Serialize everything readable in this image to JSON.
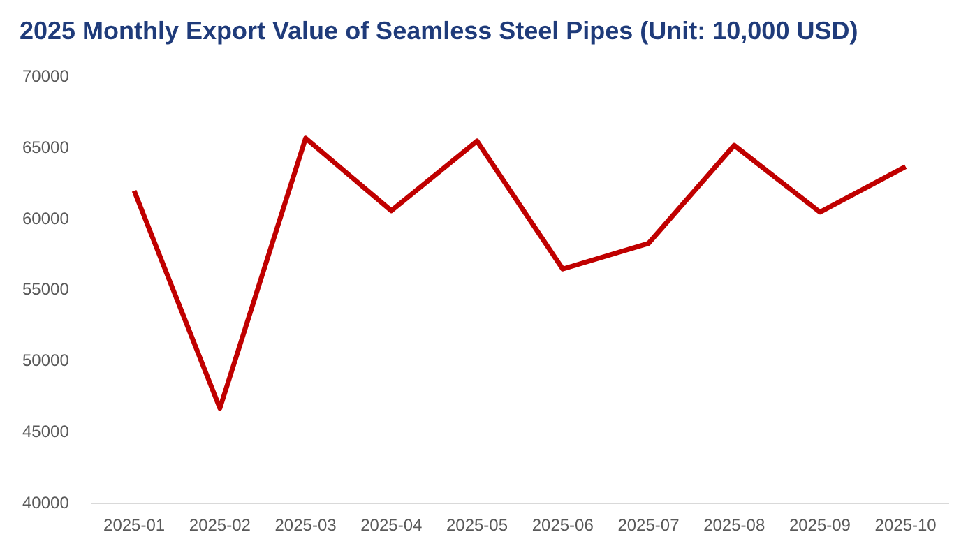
{
  "chart_data": {
    "type": "line",
    "title": "2025 Monthly Export Value of Seamless Steel Pipes (Unit: 10,000 USD)",
    "categories": [
      "2025-01",
      "2025-02",
      "2025-03",
      "2025-04",
      "2025-05",
      "2025-06",
      "2025-07",
      "2025-08",
      "2025-09",
      "2025-10"
    ],
    "series": [
      {
        "color": "#c00000",
        "values": [
          62000,
          46700,
          65700,
          60600,
          65500,
          56500,
          58300,
          65200,
          60500,
          63700
        ]
      }
    ],
    "ylim": [
      40000,
      70000
    ],
    "yticks": [
      40000,
      45000,
      50000,
      55000,
      60000,
      65000,
      70000
    ],
    "grid": false,
    "legend": false,
    "marker": "none",
    "line_style": "solid"
  }
}
